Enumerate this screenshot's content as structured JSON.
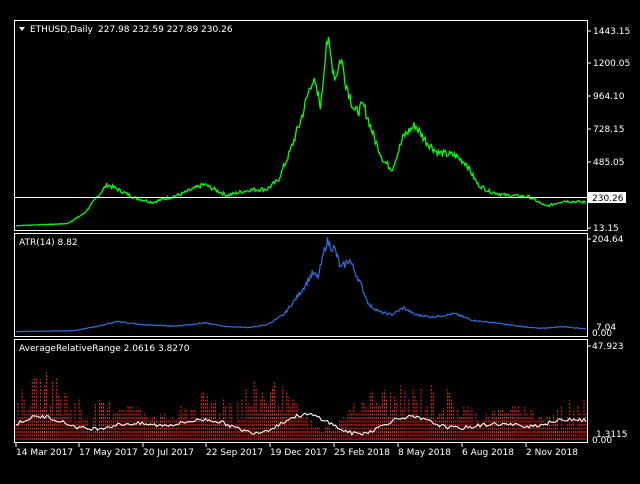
{
  "colors": {
    "background": "#000000",
    "frame": "#ffffff",
    "price_line": "#00ff00",
    "atr_line": "#2f6fd8",
    "arr_histogram": "#ff2020",
    "arr_line": "#ffffff",
    "price_tag_bg": "#ffffff",
    "price_tag_text": "#000000"
  },
  "panels": {
    "price": {
      "symbol": "ETHUSD,Daily",
      "ohlc": "227.98 232.59 227.89 230.26",
      "current_price": "230.26",
      "scale_labels": [
        "1443.15",
        "1200.05",
        "964.10",
        "728.15",
        "485.05",
        "13.15"
      ],
      "collapse_icon": "triangle-down-icon"
    },
    "atr": {
      "label": "ATR(14) 8.82",
      "scale_labels": [
        "204.64",
        "7.04",
        "0.00"
      ]
    },
    "arr": {
      "label": "AverageRelativeRange 2.0616 3.8270",
      "scale_labels": [
        "47.923",
        "1.3115",
        "0.00"
      ]
    }
  },
  "time_axis": [
    "14 Mar 2017",
    "17 May 2017",
    "20 Jul 2017",
    "22 Sep 2017",
    "19 Dec 2017",
    "25 Feb 2018",
    "8 May 2018",
    "6 Aug 2018",
    "2 Nov 2018"
  ],
  "chart_data": [
    {
      "type": "line",
      "series": [
        {
          "name": "ETHUSD,Daily",
          "x": [
            "14 Mar 2017",
            "17 May 2017",
            "20 Jul 2017",
            "22 Sep 2017",
            "19 Dec 2017",
            "25 Feb 2018",
            "8 May 2018",
            "6 Aug 2018",
            "2 Nov 2018"
          ],
          "y": [
            28,
            95,
            210,
            280,
            750,
            850,
            750,
            400,
            200
          ]
        }
      ],
      "ylim": [
        13.15,
        1443.15
      ],
      "horizontal_line": 230.26
    },
    {
      "type": "line",
      "series": [
        {
          "name": "ATR(14)",
          "x": [
            "14 Mar 2017",
            "17 May 2017",
            "20 Jul 2017",
            "22 Sep 2017",
            "19 Dec 2017",
            "25 Feb 2018",
            "8 May 2018",
            "6 Aug 2018",
            "2 Nov 2018"
          ],
          "y": [
            3,
            15,
            30,
            22,
            120,
            50,
            55,
            28,
            10
          ]
        }
      ],
      "ylim": [
        0.0,
        204.64
      ]
    },
    {
      "type": "bar",
      "series": [
        {
          "name": "AverageRelativeRange",
          "x": [
            "14 Mar 2017",
            "17 May 2017",
            "20 Jul 2017",
            "22 Sep 2017",
            "19 Dec 2017",
            "25 Feb 2018",
            "8 May 2018",
            "6 Aug 2018",
            "2 Nov 2018"
          ],
          "y": [
            15,
            14,
            12,
            8,
            17,
            9,
            8,
            7,
            9
          ]
        }
      ],
      "ylim": [
        0.0,
        47.923
      ]
    }
  ]
}
